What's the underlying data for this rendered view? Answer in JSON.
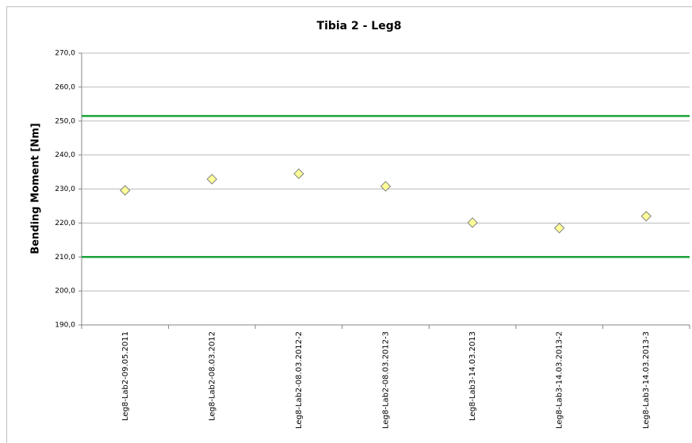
{
  "chart_data": {
    "type": "scatter",
    "title": "Tibia 2 - Leg8",
    "y_label": "Bending Moment [Nm]",
    "categories": [
      "Leg8-Lab2-09.05.2011",
      "Leg8-Lab2-08.03.2012",
      "Leg8-Lab2-08.03.2012-2",
      "Leg8-Lab2-08.03.2012-3",
      "Leg8-Lab3-14.03.2013",
      "Leg8-Lab3-14.03.2013-2",
      "Leg8-Lab3-14.03.2013-3"
    ],
    "values": [
      229.6,
      232.9,
      234.5,
      230.8,
      220.1,
      218.5,
      222.0
    ],
    "marker_color": "#ffff99",
    "reference_lines": [
      {
        "value": 251.5,
        "color": "#1aa33a"
      },
      {
        "value": 210,
        "color": "#1aa33a"
      }
    ],
    "ylim": [
      190,
      270
    ],
    "yticks": [
      {
        "value": 190,
        "label": "190,0"
      },
      {
        "value": 200,
        "label": "200,0"
      },
      {
        "value": 210,
        "label": "210,0"
      },
      {
        "value": 220,
        "label": "220,0"
      },
      {
        "value": 230,
        "label": "230,0"
      },
      {
        "value": 240,
        "label": "240,0"
      },
      {
        "value": 250,
        "label": "250,0"
      },
      {
        "value": 260,
        "label": "260,0"
      },
      {
        "value": 270,
        "label": "270,0"
      }
    ],
    "grid": true
  }
}
